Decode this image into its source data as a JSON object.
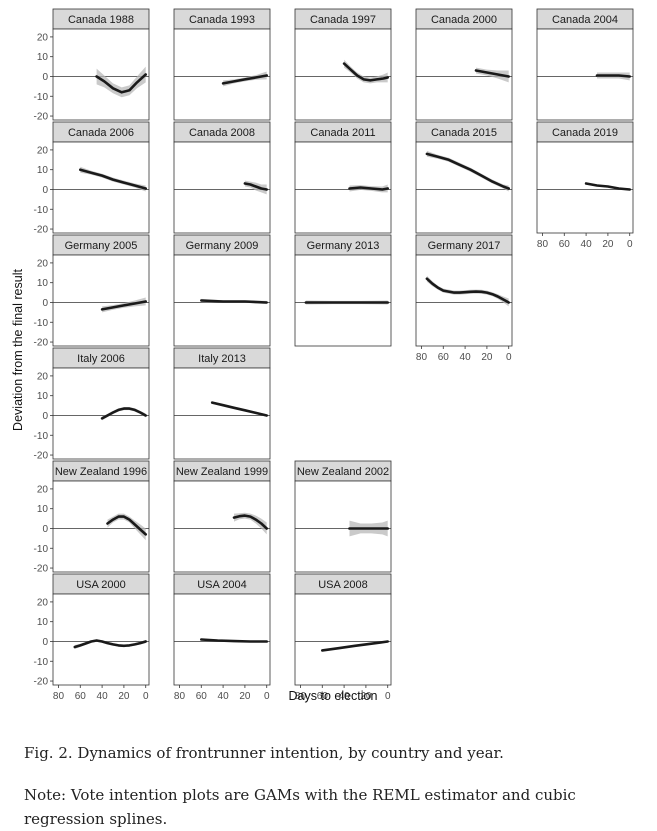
{
  "chart_data": {
    "type": "line",
    "facet_layout": "wrap",
    "xlabel": "Days to election",
    "ylabel": "Deviation from the final result",
    "xlim": [
      85,
      -3
    ],
    "ylim": [
      -22,
      24
    ],
    "x_ticks": [
      80,
      60,
      40,
      20,
      0
    ],
    "y_ticks": [
      -20,
      -10,
      0,
      10,
      20
    ],
    "x_axis_reversed": true,
    "reference_line_y": 0,
    "line_color": "#1a1a1a",
    "ribbon_color": "#b8b8b8",
    "strip_color": "#d9d9d9",
    "panels": [
      {
        "label": "Canada 1988",
        "row": 0,
        "col": 0,
        "x": [
          45,
          38,
          30,
          22,
          15,
          8,
          0
        ],
        "y": [
          0,
          -2.5,
          -6,
          -8,
          -7,
          -3,
          1
        ],
        "band": [
          4,
          3,
          2.5,
          2.5,
          2.5,
          3,
          4
        ]
      },
      {
        "label": "Canada 1993",
        "row": 0,
        "col": 1,
        "x": [
          40,
          30,
          20,
          10,
          0
        ],
        "y": [
          -3.5,
          -2.5,
          -1.5,
          -0.5,
          0.5
        ],
        "band": [
          1.5,
          1,
          1,
          1.2,
          2
        ]
      },
      {
        "label": "Canada 1997",
        "row": 0,
        "col": 2,
        "x": [
          40,
          34,
          28,
          22,
          16,
          10,
          4,
          0
        ],
        "y": [
          6.5,
          3.5,
          0.5,
          -1.5,
          -2,
          -1.5,
          -1,
          -0.5
        ],
        "band": [
          2,
          1.5,
          1.5,
          1.5,
          1.5,
          1.5,
          2,
          2.5
        ]
      },
      {
        "label": "Canada 2000",
        "row": 0,
        "col": 3,
        "x": [
          30,
          20,
          10,
          0
        ],
        "y": [
          3,
          2,
          1,
          0
        ],
        "band": [
          1.5,
          1.5,
          2,
          3
        ]
      },
      {
        "label": "Canada 2004",
        "row": 0,
        "col": 4,
        "x": [
          30,
          20,
          10,
          0
        ],
        "y": [
          0.5,
          0.5,
          0.5,
          0
        ],
        "band": [
          1.5,
          1.5,
          1.5,
          2
        ]
      },
      {
        "label": "Canada 2006",
        "row": 1,
        "col": 0,
        "x": [
          60,
          50,
          40,
          30,
          20,
          10,
          0
        ],
        "y": [
          10,
          8.5,
          7,
          5,
          3.5,
          2,
          0.5
        ],
        "band": [
          1.5,
          1,
          1,
          1,
          1,
          1,
          1.5
        ]
      },
      {
        "label": "Canada 2008",
        "row": 1,
        "col": 1,
        "x": [
          20,
          15,
          10,
          5,
          0
        ],
        "y": [
          3,
          2.5,
          1.5,
          0.5,
          0
        ],
        "band": [
          1.5,
          1.5,
          2,
          2,
          2.5
        ]
      },
      {
        "label": "Canada 2011",
        "row": 1,
        "col": 2,
        "x": [
          35,
          25,
          15,
          5,
          0
        ],
        "y": [
          0.5,
          1,
          0.5,
          0,
          0.5
        ],
        "band": [
          1.5,
          1.2,
          1.2,
          1.5,
          2
        ]
      },
      {
        "label": "Canada 2015",
        "row": 1,
        "col": 3,
        "x": [
          75,
          65,
          55,
          45,
          35,
          25,
          15,
          5,
          0
        ],
        "y": [
          18,
          16.5,
          15,
          12.5,
          10,
          7,
          4,
          1.5,
          0.5
        ],
        "band": [
          1.5,
          1,
          1,
          1,
          1,
          1,
          1,
          1,
          1.5
        ]
      },
      {
        "label": "Canada 2019",
        "row": 1,
        "col": 4,
        "x": [
          40,
          30,
          20,
          10,
          0
        ],
        "y": [
          3,
          2,
          1.5,
          0.5,
          0
        ],
        "band": [
          0.5,
          0.5,
          0.5,
          0.5,
          0.5
        ]
      },
      {
        "label": "Germany 2005",
        "row": 2,
        "col": 0,
        "x": [
          40,
          30,
          20,
          10,
          0
        ],
        "y": [
          -3.5,
          -2.5,
          -1.5,
          -0.5,
          0.5
        ],
        "band": [
          1.5,
          1.2,
          1.2,
          1.5,
          2
        ]
      },
      {
        "label": "Germany 2009",
        "row": 2,
        "col": 1,
        "x": [
          60,
          40,
          20,
          0
        ],
        "y": [
          1,
          0.5,
          0.5,
          0
        ],
        "band": [
          0.8,
          0.6,
          0.6,
          0.8
        ]
      },
      {
        "label": "Germany 2013",
        "row": 2,
        "col": 2,
        "x": [
          75,
          50,
          25,
          0
        ],
        "y": [
          0,
          0,
          0,
          0
        ],
        "band": [
          1,
          0.8,
          0.8,
          1
        ]
      },
      {
        "label": "Germany 2017",
        "row": 2,
        "col": 3,
        "x": [
          75,
          70,
          65,
          60,
          55,
          50,
          45,
          40,
          35,
          30,
          25,
          20,
          15,
          10,
          5,
          0
        ],
        "y": [
          12,
          9.5,
          7.5,
          6,
          5.5,
          5,
          5,
          5.2,
          5.4,
          5.5,
          5.4,
          5,
          4.2,
          3,
          1.5,
          0
        ],
        "band": [
          1.5,
          1.2,
          1,
          1,
          1,
          1,
          1,
          1,
          1,
          1,
          1,
          1,
          1,
          1.2,
          1.5,
          2
        ]
      },
      {
        "label": "Italy 2006",
        "row": 3,
        "col": 0,
        "x": [
          40,
          35,
          30,
          25,
          20,
          15,
          10,
          5,
          0
        ],
        "y": [
          -1.5,
          0,
          1.5,
          2.8,
          3.5,
          3.5,
          2.8,
          1.5,
          0
        ],
        "band": [
          1,
          0.8,
          0.8,
          0.8,
          0.8,
          0.8,
          0.8,
          0.8,
          1
        ]
      },
      {
        "label": "Italy 2013",
        "row": 3,
        "col": 1,
        "x": [
          50,
          40,
          30,
          20,
          10,
          0
        ],
        "y": [
          6.5,
          5.2,
          3.9,
          2.6,
          1.3,
          0
        ],
        "band": [
          0.6,
          0.5,
          0.5,
          0.5,
          0.5,
          0.6
        ]
      },
      {
        "label": "New Zealand 1996",
        "row": 4,
        "col": 0,
        "x": [
          35,
          30,
          25,
          20,
          15,
          10,
          5,
          0
        ],
        "y": [
          2.5,
          4.5,
          6,
          6,
          4.5,
          2,
          -0.5,
          -3
        ],
        "band": [
          2,
          1.5,
          1.5,
          1.5,
          1.5,
          2,
          2.5,
          3
        ]
      },
      {
        "label": "New Zealand 1999",
        "row": 4,
        "col": 1,
        "x": [
          30,
          25,
          20,
          15,
          10,
          5,
          0
        ],
        "y": [
          5.5,
          6.2,
          6.5,
          6,
          4.5,
          2.5,
          0
        ],
        "band": [
          2,
          1.5,
          1.5,
          1.5,
          2,
          2.5,
          3
        ]
      },
      {
        "label": "New Zealand 2002",
        "row": 4,
        "col": 2,
        "x": [
          35,
          25,
          15,
          5,
          0
        ],
        "y": [
          0,
          0,
          0,
          0,
          0
        ],
        "band": [
          4,
          2.5,
          2.5,
          3,
          4
        ]
      },
      {
        "label": "USA 2000",
        "row": 5,
        "col": 0,
        "x": [
          65,
          60,
          55,
          50,
          45,
          40,
          35,
          30,
          25,
          20,
          15,
          10,
          5,
          0
        ],
        "y": [
          -2.8,
          -2,
          -1,
          0,
          0.5,
          0,
          -0.8,
          -1.5,
          -2,
          -2.2,
          -2,
          -1.5,
          -0.8,
          0
        ],
        "band": [
          1,
          0.8,
          0.7,
          0.6,
          0.6,
          0.6,
          0.6,
          0.6,
          0.6,
          0.6,
          0.6,
          0.6,
          0.7,
          0.8
        ]
      },
      {
        "label": "USA 2004",
        "row": 5,
        "col": 1,
        "x": [
          60,
          45,
          30,
          15,
          0
        ],
        "y": [
          1,
          0.5,
          0.2,
          0,
          0
        ],
        "band": [
          0.5,
          0.4,
          0.4,
          0.4,
          0.5
        ]
      },
      {
        "label": "USA 2008",
        "row": 5,
        "col": 2,
        "x": [
          60,
          45,
          30,
          15,
          0
        ],
        "y": [
          -4.5,
          -3.4,
          -2.2,
          -1.1,
          0
        ],
        "band": [
          0.4,
          0.4,
          0.4,
          0.4,
          0.4
        ]
      }
    ]
  },
  "caption": {
    "figure": "Fig. 2. Dynamics of frontrunner intention, by country and year.",
    "note": "Note: Vote intention plots are GAMs with the REML estimator and cubic regression splines."
  }
}
